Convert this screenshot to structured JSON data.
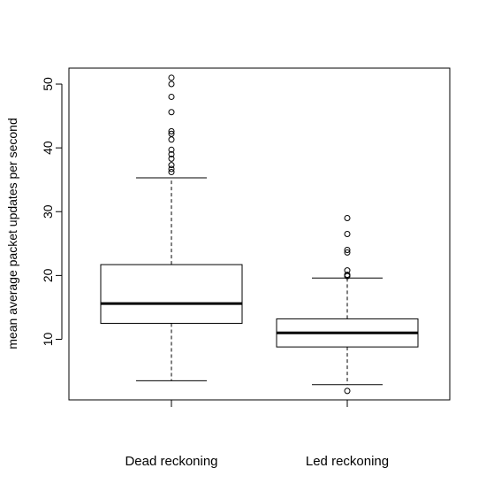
{
  "chart_data": {
    "type": "boxplot",
    "title": "",
    "xlabel": "",
    "ylabel": "mean average packet updates per second",
    "categories": [
      "Dead reckoning",
      "Led reckoning"
    ],
    "y_ticks": [
      10,
      20,
      30,
      40,
      50
    ],
    "y_tick_labels": [
      "10",
      "20",
      "30",
      "40",
      "50"
    ],
    "ylim": [
      0.5,
      52.5
    ],
    "grid": false,
    "legend": "none",
    "boxes": [
      {
        "category": "Dead reckoning",
        "whisker_low": 3.5,
        "q1": 12.5,
        "median": 15.6,
        "q3": 21.7,
        "whisker_high": 35.3,
        "outliers": [
          36.2,
          36.7,
          37.3,
          38.3,
          39.0,
          39.7,
          41.3,
          42.2,
          42.6,
          45.6,
          48.0,
          50.0,
          51.0
        ]
      },
      {
        "category": "Led reckoning",
        "whisker_low": 2.9,
        "q1": 8.8,
        "median": 11.0,
        "q3": 13.2,
        "whisker_high": 19.6,
        "outliers": [
          1.9,
          19.9,
          20.1,
          20.8,
          23.6,
          24.0,
          26.5,
          29.0
        ]
      }
    ],
    "colors": {
      "stroke": "#000000",
      "fill": "#ffffff",
      "background": "#ffffff"
    }
  }
}
